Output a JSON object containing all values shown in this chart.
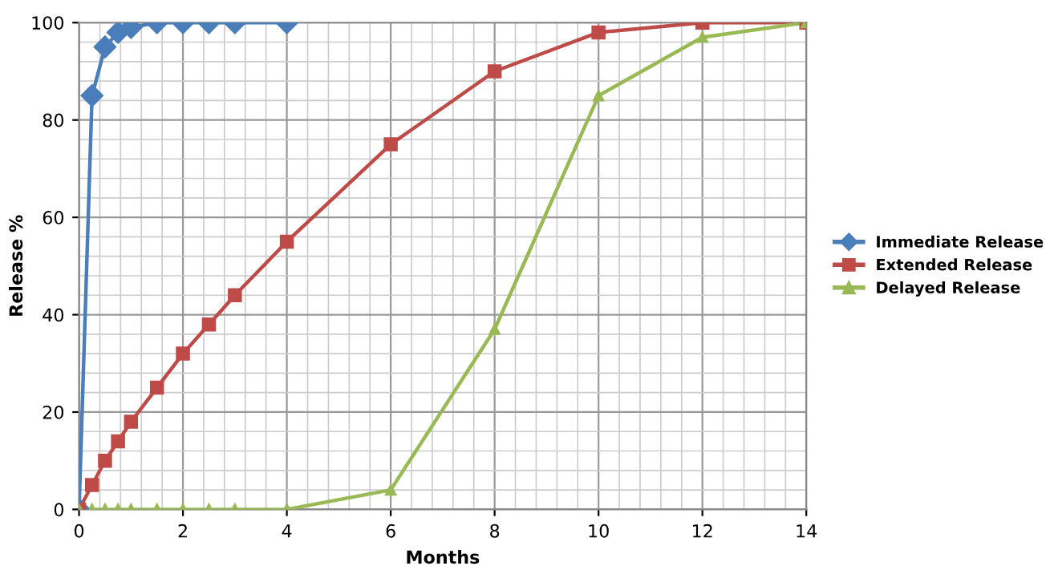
{
  "chart_data": {
    "type": "line",
    "xlabel": "Months",
    "ylabel": "Release %",
    "xlim": [
      0,
      14
    ],
    "xticks": [
      0,
      2,
      4,
      6,
      8,
      10,
      12,
      14
    ],
    "ylim": [
      0,
      100
    ],
    "yticks": [
      0,
      20,
      40,
      60,
      80,
      100
    ],
    "grid": true,
    "legend": "right",
    "line_style": "solid",
    "series": [
      {
        "name": "Immediate Release",
        "color": "#4a7ebb",
        "marker": "diamond",
        "x": [
          0,
          0.25,
          0.5,
          0.75,
          1,
          1.5,
          2,
          2.5,
          3,
          4
        ],
        "values": [
          0,
          85,
          95,
          98,
          99,
          100,
          100,
          100,
          100,
          100
        ]
      },
      {
        "name": "Extended Release",
        "color": "#be4b48",
        "marker": "square",
        "x": [
          0,
          0.25,
          0.5,
          0.75,
          1,
          1.5,
          2,
          2.5,
          3,
          4,
          6,
          8,
          10,
          12,
          14
        ],
        "values": [
          0,
          5,
          10,
          14,
          18,
          25,
          32,
          38,
          44,
          55,
          75,
          90,
          98,
          100,
          100
        ]
      },
      {
        "name": "Delayed Release",
        "color": "#98b954",
        "marker": "triangle",
        "x": [
          0,
          0.25,
          0.5,
          0.75,
          1,
          1.5,
          2,
          2.5,
          3,
          4,
          6,
          8,
          10,
          12,
          14
        ],
        "values": [
          0,
          0,
          0,
          0,
          0,
          0,
          0,
          0,
          0,
          0,
          4,
          37,
          85,
          97,
          100
        ]
      }
    ]
  }
}
